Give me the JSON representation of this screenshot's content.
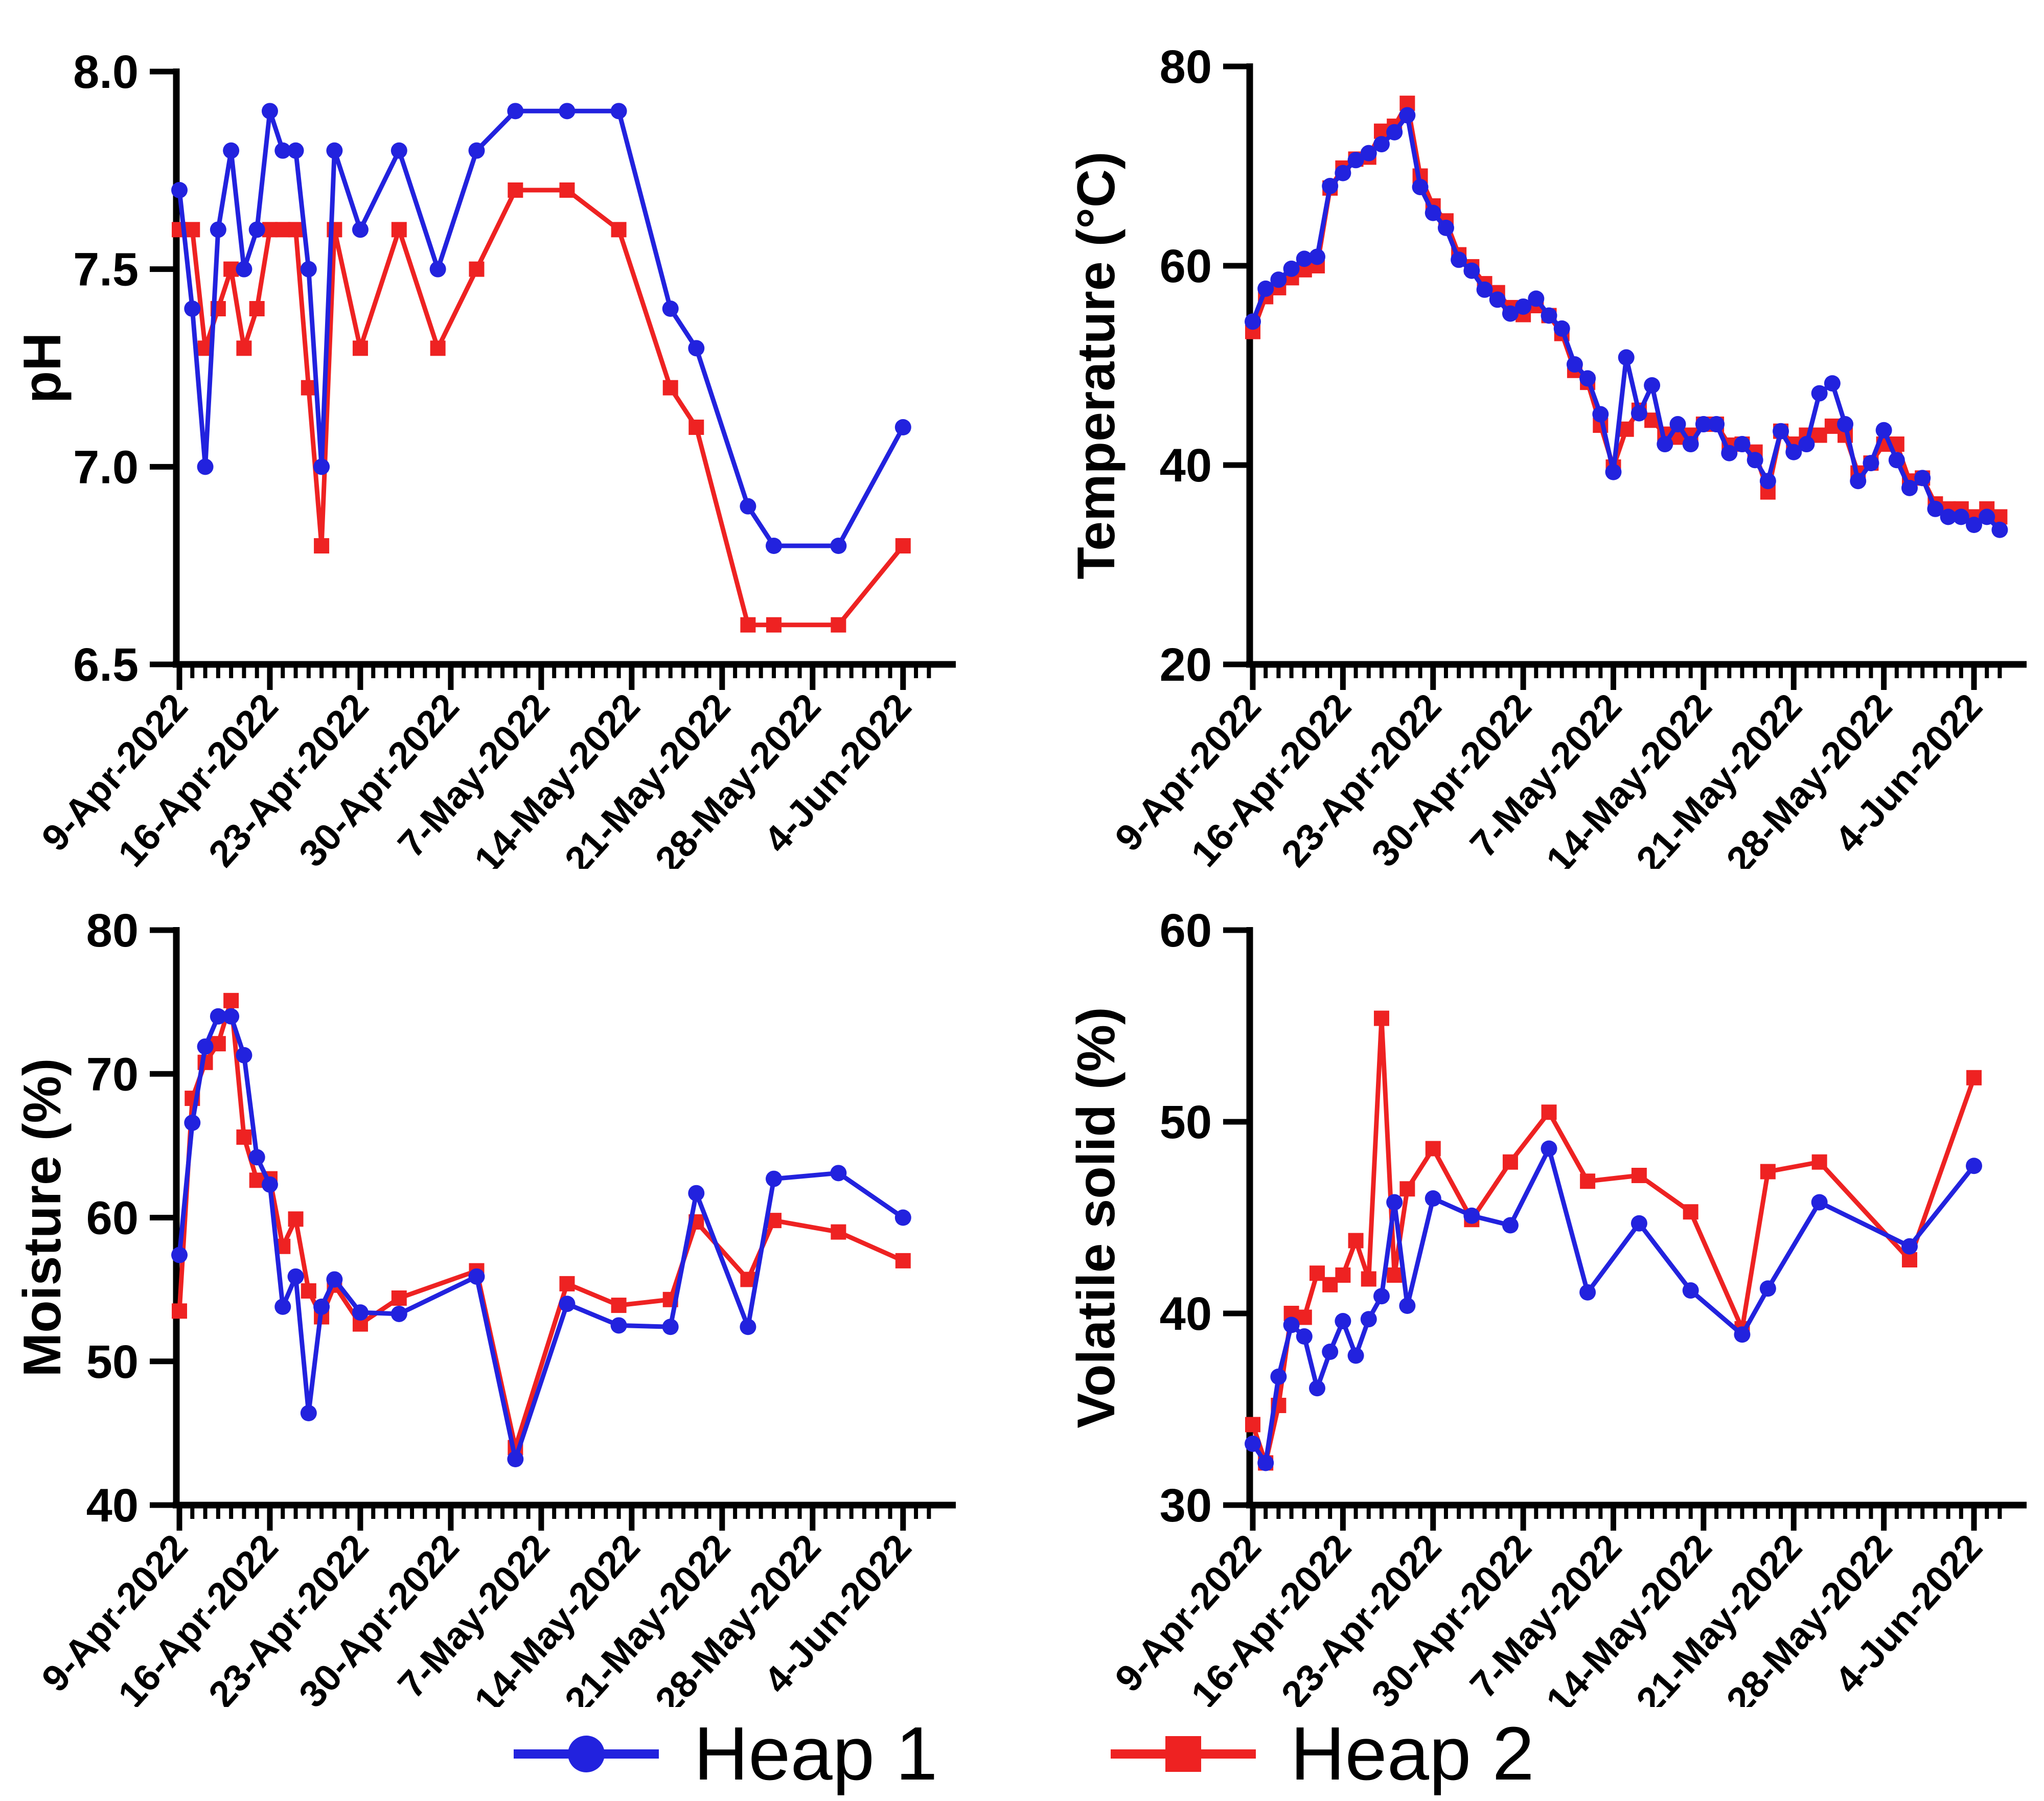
{
  "legend": {
    "items": [
      {
        "label": "Heap 1",
        "marker": "circle",
        "color": "#2222DE"
      },
      {
        "label": "Heap 2",
        "marker": "square",
        "color": "#EE2222"
      }
    ]
  },
  "colors": {
    "heap1": "#2222DE",
    "heap2": "#EE2222",
    "axis": "#000000"
  },
  "x_axis": {
    "tick_labels": [
      "9-Apr-2022",
      "16-Apr-2022",
      "23-Apr-2022",
      "30-Apr-2022",
      "7-May-2022",
      "14-May-2022",
      "21-May-2022",
      "28-May-2022",
      "4-Jun-2022"
    ],
    "tick_days": [
      0,
      7,
      14,
      21,
      28,
      35,
      42,
      49,
      56
    ],
    "minor_step_days": 1,
    "axis_end_day": 58.5
  },
  "chart_data": [
    {
      "type": "line",
      "name": "pH",
      "ylabel": "pH",
      "ylim": [
        6.5,
        8.0
      ],
      "ytick_values": [
        6.5,
        7.0,
        7.5,
        8.0
      ],
      "ytick_labels": [
        "6.5",
        "7.0",
        "7.5",
        "8.0"
      ],
      "x_days": [
        0,
        1,
        2,
        3,
        4,
        5,
        6,
        7,
        8,
        9,
        10,
        11,
        12,
        14,
        17,
        20,
        23,
        26,
        30,
        34,
        38,
        40,
        44,
        46,
        51,
        56
      ],
      "series": [
        {
          "name": "Heap 1",
          "values": [
            7.7,
            7.4,
            7.0,
            7.6,
            7.8,
            7.5,
            7.6,
            7.9,
            7.8,
            7.8,
            7.5,
            7.0,
            7.8,
            7.6,
            7.8,
            7.5,
            7.8,
            7.9,
            7.9,
            7.9,
            7.4,
            7.3,
            6.9,
            6.8,
            6.8,
            7.1
          ]
        },
        {
          "name": "Heap 2",
          "values": [
            7.6,
            7.6,
            7.3,
            7.4,
            7.5,
            7.3,
            7.4,
            7.6,
            7.6,
            7.6,
            7.2,
            6.8,
            7.6,
            7.3,
            7.6,
            7.3,
            7.5,
            7.7,
            7.7,
            7.6,
            7.2,
            7.1,
            6.6,
            6.6,
            6.6,
            6.8
          ]
        }
      ]
    },
    {
      "type": "line",
      "name": "Temperature",
      "ylabel": "Temperature (°C)",
      "ylim": [
        20,
        80
      ],
      "ytick_values": [
        20,
        40,
        60,
        80
      ],
      "ytick_labels": [
        "20",
        "40",
        "60",
        "80"
      ],
      "x_days": [
        0,
        1,
        2,
        3,
        4,
        5,
        6,
        7,
        8,
        9,
        10,
        11,
        12,
        13,
        14,
        15,
        16,
        17,
        18,
        19,
        20,
        21,
        22,
        23,
        24,
        25,
        26,
        27,
        28,
        29,
        30,
        31,
        32,
        33,
        34,
        35,
        36,
        37,
        38,
        39,
        40,
        41,
        42,
        43,
        44,
        45,
        46,
        47,
        48,
        49,
        50,
        51,
        52,
        53,
        54,
        55,
        56,
        57,
        58
      ],
      "series": [
        {
          "name": "Heap 1",
          "values": [
            54.4,
            57.7,
            58.6,
            59.7,
            60.7,
            60.9,
            68.0,
            69.3,
            70.6,
            71.3,
            72.2,
            73.4,
            75.1,
            67.9,
            65.3,
            63.8,
            60.6,
            59.5,
            57.6,
            56.6,
            55.2,
            55.9,
            56.7,
            55.0,
            53.7,
            50.1,
            48.7,
            45.1,
            39.3,
            50.8,
            45.2,
            48.0,
            42.1,
            44.1,
            42.1,
            44.1,
            44.1,
            41.2,
            42.1,
            40.5,
            38.4,
            43.4,
            41.3,
            42.1,
            47.2,
            48.2,
            44.1,
            38.4,
            40.2,
            43.5,
            40.5,
            37.7,
            38.7,
            35.6,
            34.8,
            34.8,
            34.0,
            34.8,
            33.5
          ]
        },
        {
          "name": "Heap 2",
          "values": [
            53.4,
            56.9,
            57.8,
            58.8,
            59.6,
            60.0,
            67.8,
            69.8,
            70.7,
            70.9,
            73.5,
            74.0,
            76.3,
            69.0,
            66.0,
            64.5,
            61.1,
            59.9,
            58.2,
            57.3,
            55.8,
            55.1,
            56.0,
            55.0,
            53.2,
            49.5,
            48.3,
            44.0,
            39.8,
            43.6,
            45.5,
            44.5,
            43.1,
            42.8,
            43.0,
            44.1,
            44.1,
            42.0,
            42.1,
            41.3,
            37.3,
            43.4,
            42.1,
            43.0,
            43.0,
            43.9,
            43.0,
            39.2,
            40.2,
            42.1,
            42.1,
            38.4,
            38.7,
            36.1,
            35.6,
            35.6,
            34.8,
            35.6,
            34.8
          ]
        }
      ]
    },
    {
      "type": "line",
      "name": "Moisture",
      "ylabel": "Moisture (%)",
      "ylim": [
        40,
        80
      ],
      "ytick_values": [
        40,
        50,
        60,
        70,
        80
      ],
      "ytick_labels": [
        "40",
        "50",
        "60",
        "70",
        "80"
      ],
      "x_days": [
        0,
        1,
        2,
        3,
        4,
        5,
        6,
        7,
        8,
        9,
        10,
        11,
        12,
        14,
        17,
        23,
        26,
        30,
        34,
        38,
        40,
        44,
        46,
        51,
        56
      ],
      "series": [
        {
          "name": "Heap 1",
          "values": [
            57.4,
            66.6,
            71.9,
            74.0,
            74.0,
            71.3,
            64.2,
            62.3,
            53.8,
            55.9,
            46.4,
            53.8,
            55.7,
            53.4,
            53.3,
            55.9,
            43.2,
            54.0,
            52.5,
            52.4,
            61.7,
            52.4,
            62.7,
            63.1,
            60.0
          ]
        },
        {
          "name": "Heap 2",
          "values": [
            53.5,
            68.3,
            70.8,
            72.1,
            75.1,
            65.6,
            62.6,
            62.7,
            58.0,
            59.9,
            54.9,
            53.1,
            55.3,
            52.6,
            54.4,
            56.3,
            44.0,
            55.4,
            53.9,
            54.3,
            59.7,
            55.7,
            59.8,
            59.0,
            57.0
          ]
        }
      ]
    },
    {
      "type": "line",
      "name": "Volatile solid",
      "ylabel": "Volatile solid (%)",
      "ylim": [
        30,
        60
      ],
      "ytick_values": [
        30,
        40,
        50,
        60
      ],
      "ytick_labels": [
        "30",
        "40",
        "50",
        "60"
      ],
      "x_days": [
        0,
        1,
        2,
        3,
        4,
        5,
        6,
        7,
        8,
        9,
        10,
        11,
        12,
        14,
        17,
        20,
        23,
        26,
        30,
        34,
        38,
        40,
        44,
        51,
        56
      ],
      "series": [
        {
          "name": "Heap 1",
          "values": [
            33.2,
            32.2,
            36.7,
            39.4,
            38.8,
            36.1,
            38.0,
            39.6,
            37.8,
            39.7,
            40.9,
            45.8,
            40.4,
            46.0,
            45.1,
            44.6,
            48.6,
            41.1,
            44.7,
            41.2,
            38.9,
            41.3,
            45.8,
            43.5,
            47.7
          ]
        },
        {
          "name": "Heap 2",
          "values": [
            34.2,
            32.2,
            35.2,
            40.0,
            39.8,
            42.1,
            41.5,
            42.0,
            43.8,
            41.8,
            55.4,
            42.0,
            46.5,
            48.6,
            44.9,
            47.9,
            50.5,
            46.9,
            47.2,
            45.3,
            39.2,
            47.4,
            47.9,
            42.8,
            52.3
          ]
        }
      ]
    }
  ]
}
